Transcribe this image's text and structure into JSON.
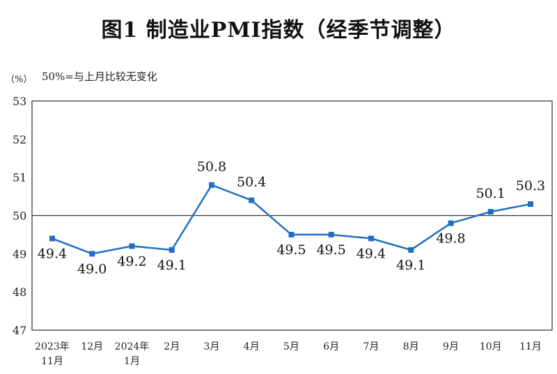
{
  "chart_data": {
    "type": "line",
    "title": "图1  制造业PMI指数（经季节调整）",
    "ylabel": "（%）",
    "annotation": "50%=与上月比较无变化",
    "categories": [
      [
        "2023年",
        "11月"
      ],
      [
        "12月"
      ],
      [
        "2024年",
        "1月"
      ],
      [
        "2月"
      ],
      [
        "3月"
      ],
      [
        "4月"
      ],
      [
        "5月"
      ],
      [
        "6月"
      ],
      [
        "7月"
      ],
      [
        "8月"
      ],
      [
        "9月"
      ],
      [
        "10月"
      ],
      [
        "11月"
      ]
    ],
    "values": [
      49.4,
      49.0,
      49.2,
      49.1,
      50.8,
      50.4,
      49.5,
      49.5,
      49.4,
      49.1,
      49.8,
      50.1,
      50.3
    ],
    "data_labels": [
      "49.4",
      "49.0",
      "49.2",
      "49.1",
      "50.8",
      "50.4",
      "49.5",
      "49.5",
      "49.4",
      "49.1",
      "49.8",
      "50.1",
      "50.3"
    ],
    "label_position": [
      "below",
      "below",
      "below",
      "below",
      "above",
      "above",
      "below",
      "below",
      "below",
      "below",
      "below",
      "above",
      "above"
    ],
    "yticks": [
      "47",
      "48",
      "49",
      "50",
      "51",
      "52",
      "53"
    ],
    "ylim": [
      47,
      53
    ],
    "reference_line": 50,
    "grid": false,
    "colors": {
      "line": "#1f6ec5",
      "marker": "#1f6ec5",
      "axis": "#555555"
    }
  }
}
